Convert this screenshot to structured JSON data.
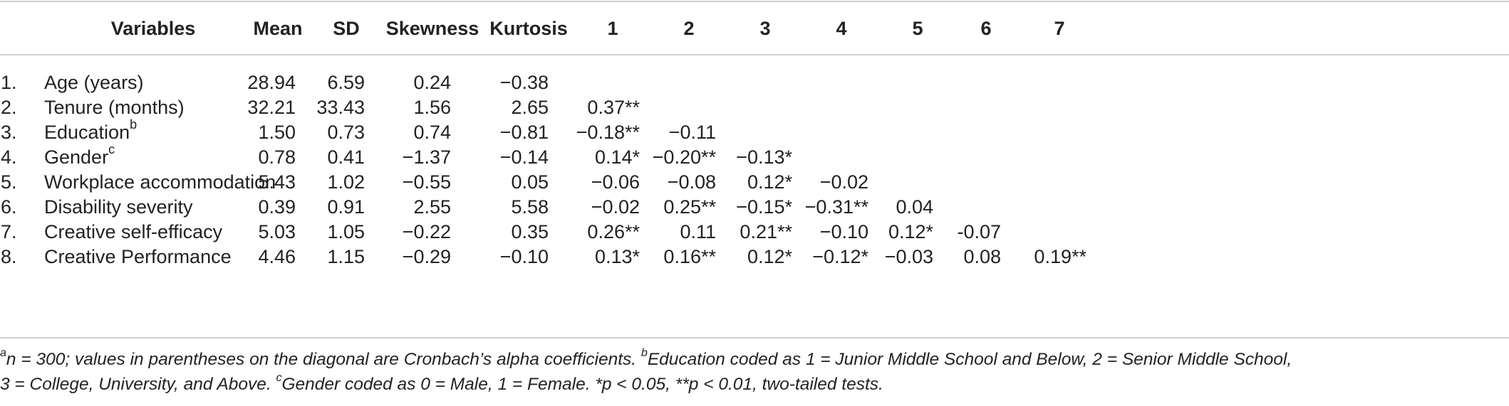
{
  "table": {
    "headers": [
      "Variables",
      "Mean",
      "SD",
      "Skewness",
      "Kurtosis",
      "1",
      "2",
      "3",
      "4",
      "5",
      "6",
      "7"
    ],
    "rows": [
      {
        "num": "1.",
        "variable": "Age (years)",
        "sup": "",
        "mean": "28.94",
        "sd": "6.59",
        "skew": "0.24",
        "kurt": "−0.38",
        "c1": "",
        "c2": "",
        "c3": "",
        "c4": "",
        "c5": "",
        "c6": "",
        "c7": ""
      },
      {
        "num": "2.",
        "variable": "Tenure (months)",
        "sup": "",
        "mean": "32.21",
        "sd": "33.43",
        "skew": "1.56",
        "kurt": "2.65",
        "c1": "0.37**",
        "c2": "",
        "c3": "",
        "c4": "",
        "c5": "",
        "c6": "",
        "c7": ""
      },
      {
        "num": "3.",
        "variable": "Education",
        "sup": "b",
        "mean": "1.50",
        "sd": "0.73",
        "skew": "0.74",
        "kurt": "−0.81",
        "c1": "−0.18**",
        "c2": "−0.11",
        "c3": "",
        "c4": "",
        "c5": "",
        "c6": "",
        "c7": ""
      },
      {
        "num": "4.",
        "variable": "Gender",
        "sup": "c",
        "mean": "0.78",
        "sd": "0.41",
        "skew": "−1.37",
        "kurt": "−0.14",
        "c1": "0.14*",
        "c2": "−0.20**",
        "c3": "−0.13*",
        "c4": "",
        "c5": "",
        "c6": "",
        "c7": ""
      },
      {
        "num": "5.",
        "variable": "Workplace accommodation",
        "sup": "",
        "mean": "5.43",
        "sd": "1.02",
        "skew": "−0.55",
        "kurt": "0.05",
        "c1": "−0.06",
        "c2": "−0.08",
        "c3": "0.12*",
        "c4": "−0.02",
        "c5": "",
        "c6": "",
        "c7": ""
      },
      {
        "num": "6.",
        "variable": "Disability severity",
        "sup": "",
        "mean": "0.39",
        "sd": "0.91",
        "skew": "2.55",
        "kurt": "5.58",
        "c1": "−0.02",
        "c2": "0.25**",
        "c3": "−0.15*",
        "c4": "−0.31**",
        "c5": "0.04",
        "c6": "",
        "c7": ""
      },
      {
        "num": "7.",
        "variable": "Creative self-efficacy",
        "sup": "",
        "mean": "5.03",
        "sd": "1.05",
        "skew": "−0.22",
        "kurt": "0.35",
        "c1": "0.26**",
        "c2": "0.11",
        "c3": "0.21**",
        "c4": "−0.10",
        "c5": "0.12*",
        "c6": "-0.07",
        "c7": ""
      },
      {
        "num": "8.",
        "variable": "Creative Performance",
        "sup": "",
        "mean": "4.46",
        "sd": "1.15",
        "skew": "−0.29",
        "kurt": "−0.10",
        "c1": "0.13*",
        "c2": "0.16**",
        "c3": "0.12*",
        "c4": "−0.12*",
        "c5": "−0.03",
        "c6": "0.08",
        "c7": "0.19**"
      }
    ]
  },
  "footnote": {
    "a_mark": "a",
    "a_text": "n = 300; values in parentheses on the diagonal are Cronbach’s alpha coefficients. ",
    "b_mark": "b",
    "b_text": "Education coded as 1 = Junior Middle School and Below, 2 = Senior Middle School,",
    "line2a": "3 = College, University, and Above. ",
    "c_mark": "c",
    "c_text": "Gender coded as 0 = Male, 1 = Female. *p < 0.05, **p < 0.01, two-tailed tests."
  }
}
